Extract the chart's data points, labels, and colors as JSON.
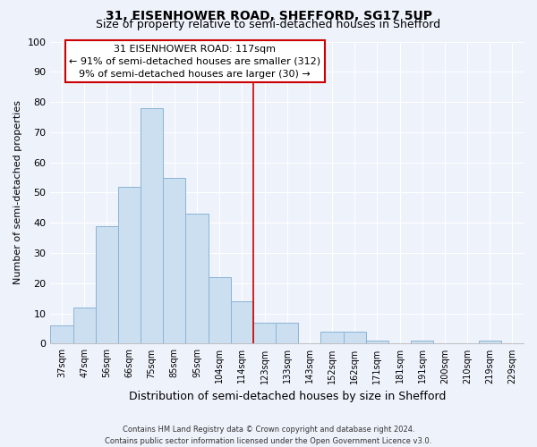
{
  "title": "31, EISENHOWER ROAD, SHEFFORD, SG17 5UP",
  "subtitle": "Size of property relative to semi-detached houses in Shefford",
  "xlabel": "Distribution of semi-detached houses by size in Shefford",
  "ylabel": "Number of semi-detached properties",
  "bin_labels": [
    "37sqm",
    "47sqm",
    "56sqm",
    "66sqm",
    "75sqm",
    "85sqm",
    "95sqm",
    "104sqm",
    "114sqm",
    "123sqm",
    "133sqm",
    "143sqm",
    "152sqm",
    "162sqm",
    "171sqm",
    "181sqm",
    "191sqm",
    "200sqm",
    "210sqm",
    "219sqm",
    "229sqm"
  ],
  "bar_values": [
    6,
    12,
    39,
    52,
    78,
    55,
    43,
    22,
    14,
    7,
    7,
    0,
    4,
    4,
    1,
    0,
    1,
    0,
    0,
    1,
    0
  ],
  "bar_color": "#ccdff0",
  "bar_edge_color": "#8ab4d4",
  "vline_x_index": 8.5,
  "vline_color": "#cc0000",
  "ylim": [
    0,
    100
  ],
  "annotation_title": "31 EISENHOWER ROAD: 117sqm",
  "annotation_line1": "← 91% of semi-detached houses are smaller (312)",
  "annotation_line2": "9% of semi-detached houses are larger (30) →",
  "footer_line1": "Contains HM Land Registry data © Crown copyright and database right 2024.",
  "footer_line2": "Contains public sector information licensed under the Open Government Licence v3.0.",
  "background_color": "#eef2fb",
  "grid_color": "#ffffff",
  "title_fontsize": 10,
  "subtitle_fontsize": 9,
  "ylabel_fontsize": 8,
  "xlabel_fontsize": 9,
  "tick_fontsize": 7,
  "annotation_fontsize": 8,
  "footer_fontsize": 6
}
